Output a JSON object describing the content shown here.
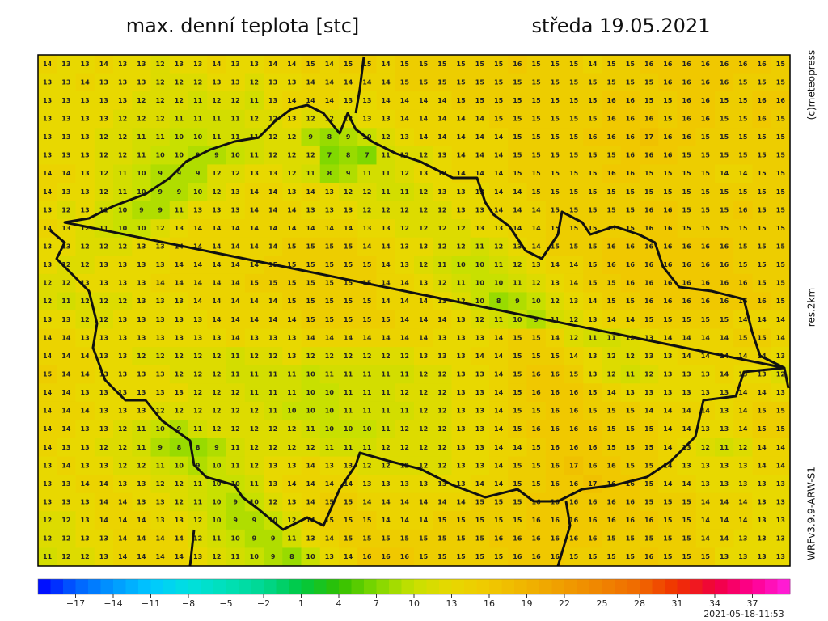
{
  "header": {
    "title": "max. denní teplota [stc]",
    "date": "středa 19.05.2021"
  },
  "side_labels": {
    "copyright": "(c)meteopress",
    "resolution": "res.2km",
    "model": "WRFv3.9.9-ARW-S1"
  },
  "footer": {
    "run": "2021-05-18-11:53"
  },
  "colorbar": {
    "lim": [
      -20,
      40
    ],
    "colors": [
      "#0000ff",
      "#0060ff",
      "#0098ff",
      "#00c8ff",
      "#00e0e0",
      "#00e0b8",
      "#00d890",
      "#00c840",
      "#30c000",
      "#80d800",
      "#c8e000",
      "#e8d800",
      "#f0c800",
      "#f0b400",
      "#f09c00",
      "#f08400",
      "#f06800",
      "#f03000",
      "#f00040",
      "#ff0090",
      "#ff20e0"
    ],
    "ticks": [
      {
        "value": -17,
        "label": "−17"
      },
      {
        "value": -14,
        "label": "−14"
      },
      {
        "value": -11,
        "label": "−11"
      },
      {
        "value": -8,
        "label": "−8"
      },
      {
        "value": -5,
        "label": "−5"
      },
      {
        "value": -2,
        "label": "−2"
      },
      1,
      4,
      7,
      10,
      13,
      16,
      19,
      22,
      25,
      28,
      31,
      34,
      37
    ]
  },
  "grid": [
    [
      14,
      13,
      13,
      14,
      13,
      13,
      12,
      13,
      13,
      14,
      13,
      13,
      14,
      14,
      15,
      14,
      15,
      15,
      14,
      15,
      15,
      15,
      15,
      15,
      15,
      16,
      15,
      15,
      15,
      14,
      15,
      15,
      16,
      16,
      16,
      16,
      16,
      16,
      16,
      15
    ],
    [
      13,
      13,
      14,
      13,
      13,
      13,
      12,
      12,
      12,
      13,
      13,
      12,
      13,
      13,
      14,
      14,
      14,
      14,
      14,
      15,
      15,
      15,
      15,
      15,
      15,
      15,
      15,
      15,
      15,
      15,
      15,
      15,
      15,
      16,
      16,
      16,
      16,
      15,
      15,
      15
    ],
    [
      13,
      13,
      13,
      13,
      13,
      12,
      12,
      12,
      11,
      12,
      12,
      11,
      13,
      14,
      14,
      14,
      13,
      13,
      14,
      14,
      14,
      14,
      15,
      15,
      15,
      15,
      15,
      15,
      15,
      15,
      16,
      16,
      15,
      15,
      16,
      16,
      15,
      15,
      16,
      16
    ],
    [
      13,
      13,
      13,
      13,
      12,
      12,
      12,
      11,
      11,
      11,
      11,
      12,
      12,
      13,
      12,
      12,
      12,
      13,
      13,
      14,
      14,
      14,
      14,
      14,
      15,
      15,
      15,
      15,
      15,
      15,
      16,
      16,
      16,
      15,
      16,
      16,
      15,
      15,
      16,
      15
    ],
    [
      13,
      13,
      13,
      12,
      12,
      11,
      11,
      10,
      10,
      11,
      11,
      11,
      12,
      12,
      9,
      8,
      9,
      10,
      12,
      13,
      14,
      14,
      14,
      14,
      14,
      15,
      15,
      15,
      15,
      16,
      16,
      16,
      17,
      16,
      16,
      15,
      15,
      15,
      15,
      15
    ],
    [
      13,
      13,
      13,
      12,
      12,
      11,
      10,
      10,
      9,
      9,
      10,
      11,
      12,
      12,
      12,
      7,
      8,
      7,
      11,
      12,
      12,
      13,
      14,
      14,
      14,
      15,
      15,
      15,
      15,
      15,
      15,
      16,
      16,
      16,
      15,
      15,
      15,
      15,
      15,
      15
    ],
    [
      14,
      14,
      13,
      12,
      11,
      10,
      9,
      9,
      9,
      12,
      12,
      13,
      13,
      12,
      11,
      8,
      9,
      11,
      11,
      12,
      13,
      13,
      14,
      14,
      14,
      15,
      15,
      15,
      15,
      15,
      16,
      16,
      15,
      15,
      15,
      15,
      14,
      14,
      15,
      15
    ],
    [
      14,
      13,
      13,
      12,
      11,
      10,
      9,
      9,
      10,
      12,
      13,
      14,
      14,
      13,
      14,
      13,
      12,
      12,
      11,
      11,
      12,
      13,
      13,
      13,
      14,
      14,
      15,
      15,
      15,
      15,
      15,
      15,
      15,
      15,
      15,
      15,
      15,
      15,
      15,
      15
    ],
    [
      13,
      12,
      13,
      11,
      10,
      9,
      9,
      11,
      13,
      13,
      13,
      14,
      14,
      14,
      13,
      13,
      13,
      12,
      12,
      12,
      12,
      12,
      13,
      13,
      14,
      14,
      14,
      15,
      15,
      15,
      15,
      15,
      16,
      16,
      15,
      15,
      15,
      16,
      15,
      15
    ],
    [
      14,
      13,
      12,
      11,
      10,
      10,
      12,
      13,
      14,
      14,
      14,
      14,
      14,
      14,
      14,
      14,
      14,
      13,
      13,
      12,
      12,
      12,
      12,
      13,
      13,
      14,
      14,
      15,
      15,
      15,
      15,
      15,
      16,
      16,
      15,
      15,
      15,
      15,
      15,
      15
    ],
    [
      13,
      13,
      12,
      12,
      12,
      13,
      13,
      14,
      14,
      14,
      14,
      14,
      14,
      15,
      15,
      15,
      15,
      14,
      14,
      13,
      13,
      12,
      12,
      11,
      12,
      13,
      14,
      15,
      15,
      15,
      16,
      16,
      16,
      16,
      16,
      16,
      16,
      15,
      15,
      15
    ],
    [
      13,
      12,
      12,
      13,
      13,
      13,
      13,
      14,
      14,
      14,
      14,
      14,
      15,
      15,
      15,
      15,
      15,
      15,
      14,
      13,
      12,
      11,
      10,
      10,
      11,
      12,
      13,
      14,
      14,
      15,
      16,
      16,
      16,
      16,
      16,
      16,
      16,
      15,
      15,
      15
    ],
    [
      12,
      12,
      13,
      13,
      13,
      13,
      14,
      14,
      14,
      14,
      14,
      15,
      15,
      15,
      15,
      15,
      15,
      15,
      14,
      14,
      13,
      12,
      11,
      10,
      10,
      11,
      12,
      13,
      14,
      15,
      15,
      16,
      16,
      16,
      16,
      16,
      16,
      16,
      15,
      15
    ],
    [
      12,
      11,
      12,
      12,
      12,
      13,
      13,
      13,
      14,
      14,
      14,
      14,
      14,
      15,
      15,
      15,
      15,
      15,
      14,
      14,
      14,
      13,
      12,
      10,
      8,
      9,
      10,
      12,
      13,
      14,
      15,
      15,
      16,
      16,
      16,
      16,
      16,
      16,
      16,
      15
    ],
    [
      13,
      13,
      12,
      12,
      13,
      13,
      13,
      13,
      13,
      14,
      14,
      14,
      14,
      14,
      15,
      15,
      15,
      15,
      15,
      14,
      14,
      14,
      13,
      12,
      11,
      10,
      9,
      11,
      12,
      13,
      14,
      14,
      15,
      15,
      15,
      15,
      15,
      14,
      14,
      14
    ],
    [
      14,
      14,
      13,
      13,
      13,
      13,
      13,
      13,
      13,
      13,
      14,
      13,
      13,
      13,
      14,
      14,
      14,
      14,
      14,
      14,
      14,
      13,
      13,
      13,
      14,
      15,
      15,
      14,
      12,
      11,
      11,
      12,
      13,
      14,
      14,
      14,
      14,
      15,
      15,
      14
    ],
    [
      14,
      14,
      14,
      13,
      13,
      12,
      12,
      12,
      12,
      12,
      11,
      12,
      12,
      13,
      12,
      12,
      12,
      12,
      12,
      12,
      13,
      13,
      13,
      14,
      14,
      15,
      15,
      15,
      14,
      13,
      12,
      12,
      13,
      13,
      14,
      14,
      14,
      14,
      14,
      13
    ],
    [
      15,
      14,
      14,
      13,
      13,
      13,
      13,
      12,
      12,
      12,
      11,
      11,
      11,
      11,
      10,
      11,
      11,
      11,
      11,
      11,
      12,
      12,
      13,
      13,
      14,
      15,
      16,
      16,
      15,
      13,
      12,
      11,
      12,
      13,
      13,
      13,
      14,
      13,
      13,
      12
    ],
    [
      14,
      14,
      13,
      13,
      13,
      13,
      13,
      13,
      12,
      12,
      12,
      11,
      11,
      11,
      10,
      10,
      11,
      11,
      11,
      12,
      12,
      12,
      13,
      13,
      14,
      15,
      16,
      16,
      16,
      15,
      14,
      13,
      13,
      13,
      13,
      13,
      13,
      14,
      14,
      13
    ],
    [
      14,
      14,
      14,
      13,
      13,
      13,
      12,
      12,
      12,
      12,
      12,
      12,
      11,
      10,
      10,
      10,
      11,
      11,
      11,
      11,
      12,
      12,
      13,
      13,
      14,
      15,
      15,
      16,
      16,
      15,
      15,
      15,
      14,
      14,
      14,
      14,
      13,
      14,
      15,
      15
    ],
    [
      14,
      14,
      13,
      13,
      12,
      11,
      10,
      9,
      11,
      12,
      12,
      12,
      12,
      12,
      11,
      10,
      10,
      10,
      11,
      12,
      12,
      12,
      13,
      13,
      14,
      15,
      16,
      16,
      16,
      16,
      15,
      15,
      15,
      14,
      14,
      13,
      13,
      14,
      15,
      15
    ],
    [
      14,
      13,
      13,
      12,
      12,
      11,
      9,
      8,
      8,
      9,
      11,
      12,
      12,
      12,
      12,
      11,
      11,
      11,
      12,
      12,
      12,
      12,
      13,
      13,
      14,
      14,
      15,
      16,
      16,
      16,
      15,
      15,
      15,
      14,
      13,
      12,
      11,
      12,
      14,
      14
    ],
    [
      13,
      14,
      13,
      13,
      12,
      12,
      11,
      10,
      9,
      10,
      11,
      12,
      13,
      13,
      14,
      13,
      13,
      12,
      12,
      12,
      12,
      12,
      13,
      13,
      14,
      15,
      15,
      16,
      17,
      16,
      16,
      15,
      15,
      14,
      13,
      13,
      13,
      13,
      14,
      14
    ],
    [
      13,
      13,
      14,
      14,
      13,
      13,
      12,
      12,
      11,
      10,
      10,
      11,
      13,
      14,
      14,
      14,
      14,
      13,
      13,
      13,
      13,
      13,
      13,
      14,
      14,
      15,
      15,
      16,
      16,
      17,
      16,
      16,
      15,
      14,
      14,
      13,
      13,
      13,
      13,
      13
    ],
    [
      13,
      13,
      13,
      14,
      14,
      13,
      13,
      12,
      11,
      10,
      9,
      10,
      12,
      13,
      14,
      15,
      15,
      14,
      14,
      14,
      14,
      14,
      14,
      15,
      15,
      15,
      16,
      16,
      16,
      16,
      16,
      16,
      15,
      15,
      15,
      14,
      14,
      14,
      13,
      13
    ],
    [
      12,
      12,
      13,
      14,
      14,
      14,
      13,
      13,
      12,
      10,
      9,
      9,
      10,
      12,
      14,
      15,
      15,
      15,
      14,
      14,
      14,
      15,
      15,
      15,
      15,
      15,
      16,
      16,
      16,
      16,
      16,
      16,
      16,
      15,
      15,
      14,
      14,
      14,
      13,
      13
    ],
    [
      12,
      12,
      13,
      13,
      14,
      14,
      14,
      14,
      12,
      11,
      10,
      9,
      9,
      11,
      13,
      14,
      15,
      15,
      15,
      15,
      15,
      15,
      15,
      15,
      16,
      16,
      16,
      16,
      16,
      16,
      15,
      15,
      15,
      15,
      15,
      14,
      14,
      13,
      13,
      13
    ],
    [
      11,
      12,
      12,
      13,
      14,
      14,
      14,
      14,
      13,
      12,
      11,
      10,
      9,
      8,
      10,
      13,
      14,
      16,
      16,
      16,
      15,
      15,
      15,
      15,
      15,
      16,
      16,
      16,
      15,
      15,
      15,
      15,
      16,
      15,
      15,
      15,
      13,
      13,
      13,
      13
    ]
  ]
}
